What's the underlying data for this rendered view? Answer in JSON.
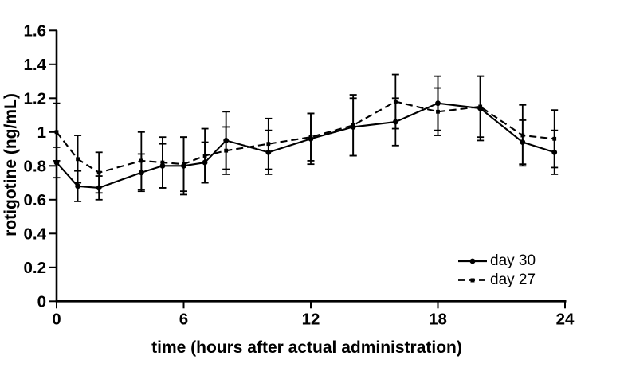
{
  "figure": {
    "background": "#ffffff",
    "axis_color": "#000000",
    "series_color": "#000000"
  },
  "chart_data": {
    "type": "line",
    "title": "",
    "xlabel": "time (hours after actual administration)",
    "ylabel": "rotigotine (ng/mL)",
    "xlim": [
      0,
      24
    ],
    "ylim": [
      0,
      1.6
    ],
    "xticks": [
      0,
      6,
      12,
      18,
      24
    ],
    "yticks": [
      "0",
      "0.2",
      "0.4",
      "0.6",
      "0.8",
      "1",
      "1.2",
      "1.4",
      "1.6"
    ],
    "grid": false,
    "error_bars": true,
    "legend_position": "inside-lower-right",
    "x": [
      0,
      1,
      2,
      4,
      5,
      6,
      7,
      8,
      10,
      12,
      14,
      16,
      18,
      20,
      22,
      23.5
    ],
    "series": [
      {
        "name": "day 30",
        "line_style": "solid",
        "marker": "circle",
        "color": "#000000",
        "values": [
          0.82,
          0.68,
          0.67,
          0.76,
          0.8,
          0.8,
          0.82,
          0.95,
          0.88,
          0.96,
          1.03,
          1.06,
          1.17,
          1.14,
          0.94,
          0.88
        ],
        "errors": [
          0.09,
          0.09,
          0.07,
          0.11,
          0.13,
          0.17,
          0.12,
          0.17,
          0.13,
          0.15,
          0.17,
          0.14,
          0.16,
          0.19,
          0.13,
          0.13
        ]
      },
      {
        "name": "day 27",
        "line_style": "dashed",
        "marker": "square",
        "color": "#000000",
        "values": [
          1.0,
          0.84,
          0.76,
          0.83,
          0.82,
          0.81,
          0.86,
          0.89,
          0.93,
          0.97,
          1.04,
          1.18,
          1.12,
          1.15,
          0.98,
          0.96
        ],
        "errors": [
          0.17,
          0.14,
          0.12,
          0.17,
          0.15,
          0.16,
          0.16,
          0.14,
          0.15,
          0.14,
          0.18,
          0.16,
          0.14,
          0.18,
          0.18,
          0.17
        ]
      }
    ]
  }
}
